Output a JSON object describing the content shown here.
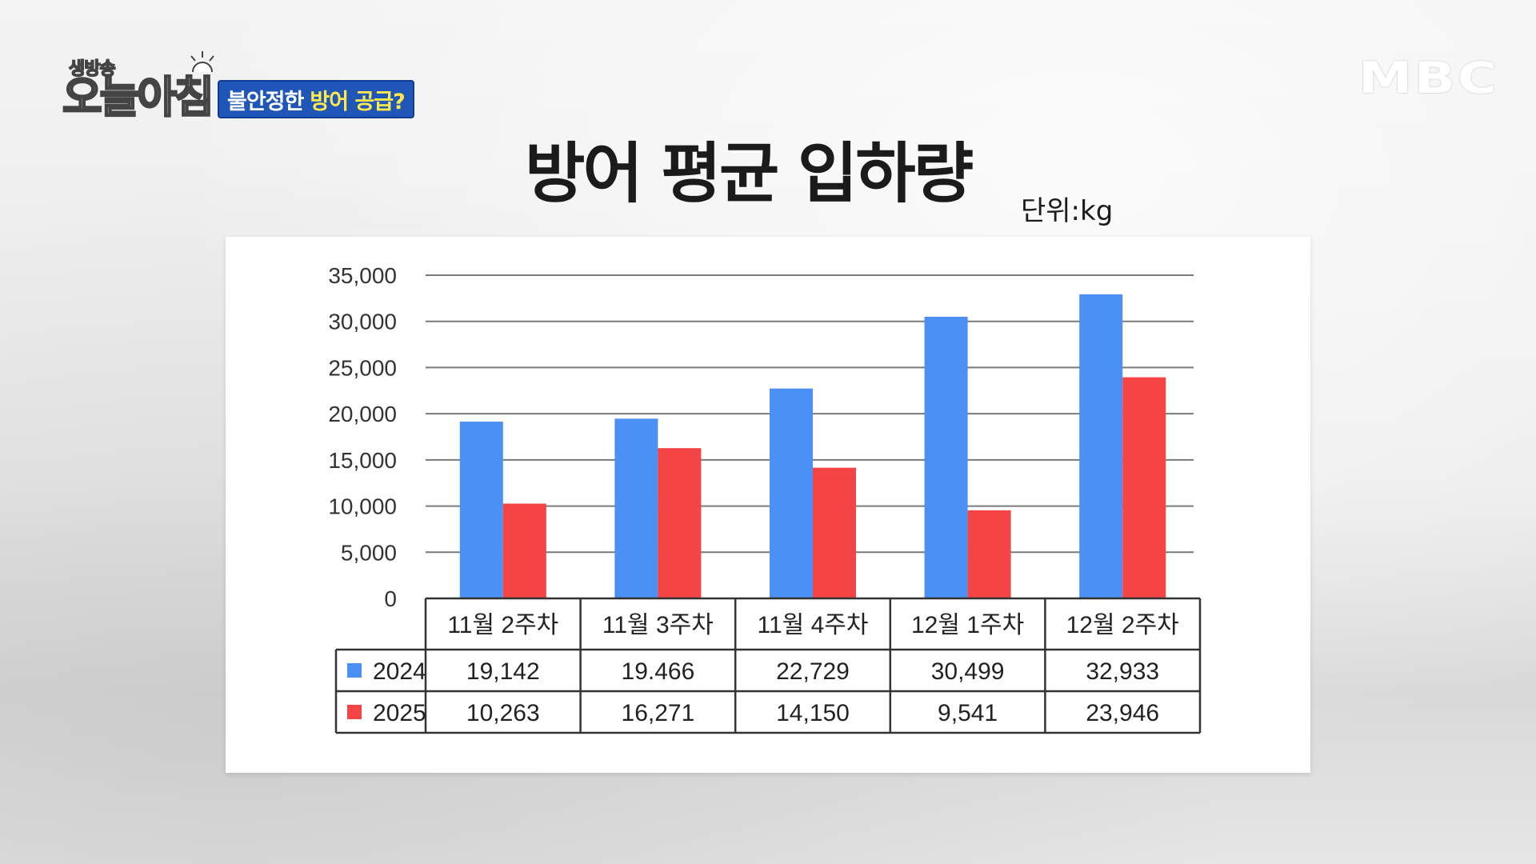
{
  "header": {
    "show_logo_small": "생방송",
    "show_logo_main": "오늘아침",
    "topic_prefix": "불안정한",
    "topic_highlight": "방어 공급?",
    "network_logo": "MBC"
  },
  "colors": {
    "series_2024": "#4a90f5",
    "series_2025": "#f54444",
    "topic_tag_bg": "#1f56b8",
    "topic_highlight": "#ffe84a"
  },
  "chart_data": {
    "type": "bar",
    "title": "방어 평균 입하량",
    "unit": "단위:kg",
    "categories": [
      "11월 2주차",
      "11월 3주차",
      "11월 4주차",
      "12월 1주차",
      "12월 2주차"
    ],
    "series": [
      {
        "name": "2024",
        "values": [
          19142,
          19466,
          22729,
          30499,
          32933
        ],
        "labels": [
          "19,142",
          "19.466",
          "22,729",
          "30,499",
          "32,933"
        ]
      },
      {
        "name": "2025",
        "values": [
          10263,
          16271,
          14150,
          9541,
          23946
        ],
        "labels": [
          "10,263",
          "16,271",
          "14,150",
          "9,541",
          "23,946"
        ]
      }
    ],
    "ylim": [
      0,
      35000
    ],
    "y_ticks": [
      "0",
      "5,000",
      "10,000",
      "15,000",
      "20,000",
      "25,000",
      "30,000",
      "35,000"
    ],
    "grid": true,
    "legend": "data-table"
  }
}
